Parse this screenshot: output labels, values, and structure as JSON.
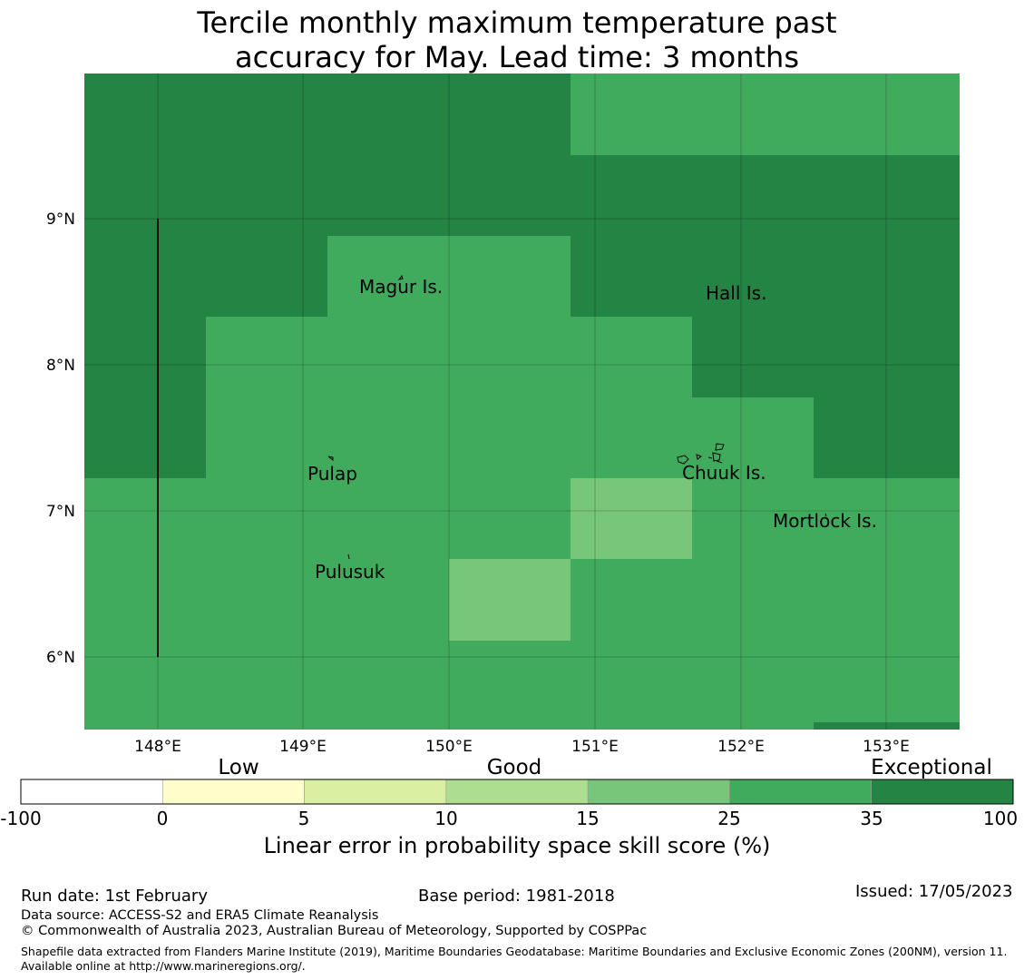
{
  "title": "Tercile monthly maximum temperature past\naccuracy for May. Lead time: 3 months",
  "map": {
    "lon_ticks": [
      "148°E",
      "149°E",
      "150°E",
      "151°E",
      "152°E",
      "153°E"
    ],
    "lat_ticks": [
      "9°N",
      "8°N",
      "7°N",
      "6°N"
    ],
    "places": [
      "Magur Is.",
      "Hall Is.",
      "Pulap",
      "Chuuk Is.",
      "Mortlock Is.",
      "Pulusuk"
    ],
    "cell_colors": {
      "exceptional": "#238443",
      "good_high": "#41ab5d",
      "good_mid": "#78c679"
    }
  },
  "colorbar": {
    "categories": [
      "Low",
      "Good",
      "Exceptional"
    ],
    "ticks": [
      "-100",
      "0",
      "5",
      "10",
      "15",
      "25",
      "35",
      "100"
    ],
    "colors": [
      "#ffffff",
      "#ffffcc",
      "#d9f0a3",
      "#addd8e",
      "#78c679",
      "#41ab5d",
      "#238443"
    ],
    "label": "Linear error in probability space skill score (%)"
  },
  "footer": {
    "run_date": "Run date: 1st February",
    "base_period": "Base period: 1981-2018",
    "issued": "Issued: 17/05/2023",
    "data_source": "Data source: ACCESS-S2 and ERA5 Climate Reanalysis",
    "copyright": "© Commonwealth of Australia 2023, Australian Bureau of Meteorology, Supported by COSPPac",
    "shapefile": "Shapefile data extracted from Flanders Marine Institute (2019), Maritime Boundaries Geodatabase: Maritime Boundaries and Exclusive Economic Zones (200NM), version 11. Available online at http://www.marineregions.org/."
  }
}
